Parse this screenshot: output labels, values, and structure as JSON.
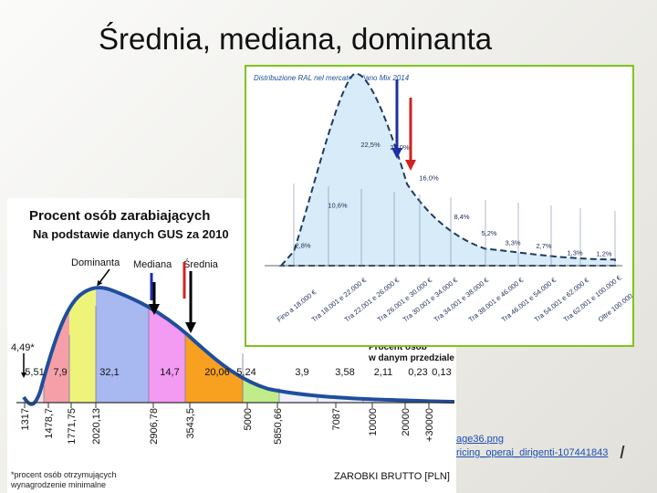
{
  "slide": {
    "title": "Średnia, mediana, dominanta",
    "link_1": "age36.png",
    "link_2": "ricing_operai_dirigenti-107441843"
  },
  "colors": {
    "dominanta_arrow": "#000000",
    "mediana_arrow": "#1a2fa8",
    "srednia_arrow": "#d42020",
    "gus_curve": "#1f4e9c",
    "it_fill": "#d7ecf8",
    "it_frame": "#7fc41c"
  },
  "chart_data": [
    {
      "type": "area",
      "title": "Procent osób zarabiających",
      "subtitle": "Na podstawie danych GUS za 2010",
      "xlabel": "ZAROBKI BRUTTO [PLN]",
      "x_ticks": [
        "1317",
        "1478,7",
        "1771,75",
        "2020,13",
        "2906,78",
        "3543,5",
        "5000",
        "5850,66",
        "7087",
        "10000",
        "20000",
        "+30000"
      ],
      "segment_values": [
        "4,49*",
        "5,51",
        "7,9",
        "32,1",
        "14,7",
        "20,06",
        "5,24",
        "3,9",
        "3,58",
        "2,11",
        "0,23",
        "0,13"
      ],
      "segment_colors": [
        "#f0e0e0",
        "#f5a0a8",
        "#eef47a",
        "#a8b8f0",
        "#f39af2",
        "#f8a020",
        "#c0ec8c",
        "#eef0fa",
        "#eef0fa",
        "#eef0fa",
        "#eef0fa",
        "#eef0fa"
      ],
      "annotations": {
        "dominanta": "Dominanta",
        "mediana": "Mediana",
        "srednia": "Średnia",
        "legend_line_1": "Procent osób",
        "legend_line_2": "w danym przedziale",
        "footnote_1": "*procent osób otrzymujących",
        "footnote_2": "wynagrodzenie minimalne"
      }
    },
    {
      "type": "bar",
      "title": "Distribuzione RAL nel mercato italiano Mix 2014",
      "categories": [
        "Fino a 18.000 €",
        "Tra 18.001 e 22.000 €",
        "Tra 22.001 e 26.000 €",
        "Tra 26.001 e 30.000 €",
        "Tra 30.001 e 34.000 €",
        "Tra 34.001 e 38.000 €",
        "Tra 38.001 e 46.000 €",
        "Tra 46.001 e 54.000 €",
        "Tra 54.001 e 62.000 €",
        "Tra 62.001 e 100.000 €",
        "Oltre 100.000 €"
      ],
      "values": [
        2.8,
        10.6,
        22.5,
        22.0,
        16.0,
        8.4,
        5.2,
        3.3,
        2.7,
        1.3,
        1.2
      ],
      "value_labels": [
        "2,8%",
        "10,6%",
        "22,5%",
        "22,0%",
        "16,0%",
        "8,4%",
        "5,2%",
        "3,3%",
        "2,7%",
        "1,3%",
        "1,2%"
      ]
    }
  ]
}
